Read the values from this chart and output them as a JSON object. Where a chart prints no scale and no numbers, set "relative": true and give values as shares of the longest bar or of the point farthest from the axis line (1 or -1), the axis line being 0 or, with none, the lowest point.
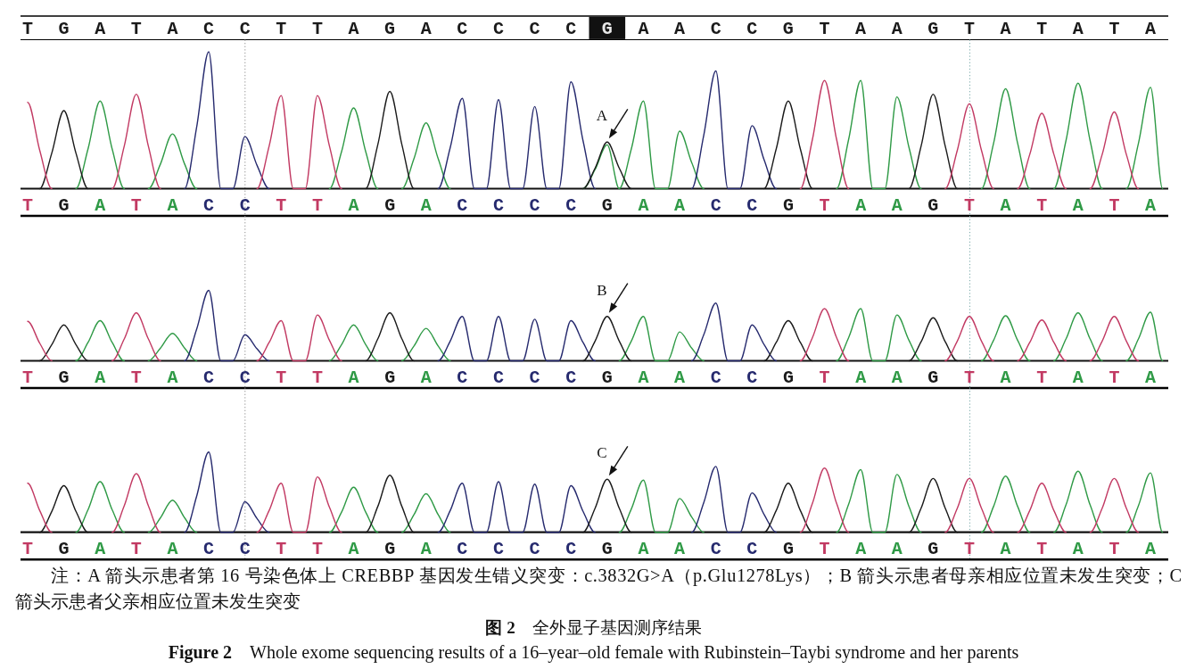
{
  "chart_data": [
    {
      "type": "other",
      "categories": [
        "T",
        "G",
        "A",
        "T",
        "A",
        "C",
        "C",
        "T",
        "T",
        "A",
        "G",
        "A",
        "C",
        "C",
        "C",
        "C",
        "G",
        "A",
        "A",
        "C",
        "C",
        "G",
        "T",
        "A",
        "A",
        "G",
        "T",
        "A",
        "T",
        "A",
        "T",
        "A"
      ],
      "colors": [
        null,
        null,
        null,
        null,
        null,
        null,
        null,
        null,
        null,
        null,
        null,
        null,
        null,
        null,
        null,
        null,
        "#111111",
        null,
        null,
        null,
        null,
        null,
        null,
        null,
        null,
        null,
        null,
        null,
        null,
        null,
        null,
        null
      ]
    },
    {
      "type": "line",
      "relative": true,
      "categories": [
        "T",
        null,
        null,
        "G",
        null,
        null,
        "A",
        null,
        null,
        "T",
        null,
        null,
        "A",
        null,
        null,
        "C",
        null,
        null,
        "C",
        null,
        null,
        "T",
        null,
        null,
        "T",
        null,
        null,
        "A",
        null,
        null,
        "G",
        null,
        null,
        "A",
        null,
        null,
        "C",
        null,
        null,
        "C",
        null,
        null,
        "C",
        null,
        null,
        "C",
        null,
        null,
        "G",
        null,
        null,
        "A",
        null,
        null,
        "A",
        null,
        null,
        "C",
        null,
        null,
        "C",
        null,
        null,
        "G",
        null,
        null,
        "T",
        null,
        null,
        "A",
        null,
        null,
        "A",
        null,
        null,
        "G",
        null,
        null,
        "T",
        null,
        null,
        "A",
        null,
        null,
        "T",
        null,
        null,
        "A",
        null,
        null,
        "T",
        null,
        null,
        "A",
        null
      ],
      "series": [
        {
          "color": "#2f9a46",
          "values": [
            null,
            null,
            null,
            null,
            0,
            0.29,
            0.64,
            0.29,
            0,
            null,
            0,
            0.18,
            0.4,
            0.18,
            0,
            null,
            null,
            null,
            null,
            null,
            null,
            null,
            null,
            null,
            null,
            0,
            0.27,
            0.59,
            0.27,
            0,
            null,
            0,
            0.22,
            0.48,
            0.22,
            0,
            null,
            null,
            null,
            null,
            null,
            null,
            null,
            null,
            null,
            null,
            0,
            0.14,
            0.32,
            0,
            0.29,
            0.64,
            0,
            0,
            0.42,
            0.19,
            0,
            null,
            null,
            null,
            null,
            null,
            null,
            null,
            null,
            null,
            null,
            0,
            0.36,
            0.79,
            0,
            0,
            0.67,
            0.3,
            0,
            null,
            null,
            null,
            null,
            0,
            0.33,
            0.73,
            0.33,
            0,
            null,
            0,
            0.35,
            0.77,
            0.35,
            0,
            null,
            0,
            0.33,
            0.74,
            0
          ]
        },
        {
          "color": "#262a6e",
          "values": [
            null,
            null,
            null,
            null,
            null,
            null,
            null,
            null,
            null,
            null,
            null,
            null,
            null,
            0,
            0.45,
            1,
            0,
            0,
            0.38,
            0.17,
            0,
            null,
            null,
            null,
            null,
            null,
            null,
            null,
            null,
            null,
            null,
            null,
            null,
            null,
            0,
            0.3,
            0.66,
            0,
            0,
            0.65,
            0,
            0,
            0.6,
            0,
            0,
            0.78,
            0.35,
            0,
            null,
            null,
            null,
            null,
            null,
            null,
            null,
            0,
            0.39,
            0.86,
            0,
            0,
            0.46,
            0.21,
            0,
            null,
            null,
            null,
            null,
            null,
            null,
            null,
            null,
            null,
            null,
            null,
            null,
            null,
            null,
            null,
            null,
            null,
            null,
            null,
            null,
            null,
            null,
            null,
            null,
            null,
            null,
            null,
            null,
            null,
            null,
            null,
            null
          ]
        },
        {
          "color": "#1a1a1a",
          "values": [
            null,
            0,
            0.26,
            0.57,
            0.26,
            0,
            null,
            null,
            null,
            null,
            null,
            null,
            null,
            null,
            null,
            null,
            null,
            null,
            null,
            null,
            null,
            null,
            null,
            null,
            null,
            null,
            null,
            null,
            0,
            0.32,
            0.71,
            0.32,
            0,
            null,
            null,
            null,
            null,
            null,
            null,
            null,
            null,
            null,
            null,
            null,
            null,
            null,
            0,
            0.15,
            0.34,
            0.15,
            0,
            null,
            null,
            null,
            null,
            null,
            null,
            null,
            null,
            null,
            null,
            0,
            0.29,
            0.64,
            0.29,
            0,
            null,
            null,
            null,
            null,
            null,
            null,
            null,
            0,
            0.31,
            0.69,
            0.31,
            0,
            null,
            null,
            null,
            null,
            null,
            null,
            null,
            null,
            null,
            null,
            null,
            null,
            null,
            null,
            null,
            null,
            null
          ]
        },
        {
          "color": "#c23a63",
          "values": [
            0.63,
            0.28,
            0,
            null,
            null,
            null,
            null,
            0,
            0.31,
            0.69,
            0.31,
            0,
            null,
            null,
            null,
            null,
            null,
            null,
            null,
            0,
            0.31,
            0.68,
            0,
            0,
            0.68,
            0.31,
            0,
            null,
            null,
            null,
            null,
            null,
            null,
            null,
            null,
            null,
            null,
            null,
            null,
            null,
            null,
            null,
            null,
            null,
            null,
            null,
            null,
            null,
            null,
            null,
            null,
            null,
            null,
            null,
            null,
            null,
            null,
            null,
            null,
            null,
            null,
            null,
            null,
            null,
            0,
            0.36,
            0.79,
            0.36,
            0,
            null,
            null,
            null,
            null,
            null,
            null,
            null,
            0,
            0.28,
            0.62,
            0.28,
            0,
            null,
            0,
            0.25,
            0.55,
            0.25,
            0,
            null,
            0,
            0.25,
            0.56,
            0.25,
            0,
            null,
            null
          ]
        }
      ],
      "annotations": [
        "A"
      ]
    },
    {
      "type": "line",
      "relative": true,
      "categories": [
        "T",
        null,
        null,
        "G",
        null,
        null,
        "A",
        null,
        null,
        "T",
        null,
        null,
        "A",
        null,
        null,
        "C",
        null,
        null,
        "C",
        null,
        null,
        "T",
        null,
        null,
        "T",
        null,
        null,
        "A",
        null,
        null,
        "G",
        null,
        null,
        "A",
        null,
        null,
        "C",
        null,
        null,
        "C",
        null,
        null,
        "C",
        null,
        null,
        "C",
        null,
        null,
        "G",
        null,
        null,
        "A",
        null,
        null,
        "A",
        null,
        null,
        "C",
        null,
        null,
        "C",
        null,
        null,
        "G",
        null,
        null,
        "T",
        null,
        null,
        "A",
        null,
        null,
        "A",
        null,
        null,
        "G",
        null,
        null,
        "T",
        null,
        null,
        "A",
        null,
        null,
        "T",
        null,
        null,
        "A",
        null,
        null,
        "T",
        null,
        null,
        "A",
        null
      ],
      "series": [
        {
          "color": "#2f9a46",
          "values": [
            null,
            null,
            null,
            null,
            0,
            0.26,
            0.57,
            0.26,
            0,
            null,
            0,
            0.18,
            0.39,
            0.18,
            0,
            null,
            null,
            null,
            null,
            null,
            null,
            null,
            null,
            null,
            null,
            0,
            0.23,
            0.51,
            0.23,
            0,
            null,
            0,
            0.21,
            0.46,
            0.21,
            0,
            null,
            null,
            null,
            null,
            null,
            null,
            null,
            null,
            null,
            null,
            null,
            null,
            null,
            0,
            0.28,
            0.63,
            0,
            0,
            0.41,
            0.18,
            0,
            null,
            null,
            null,
            null,
            null,
            null,
            null,
            null,
            null,
            null,
            0,
            0.33,
            0.74,
            0,
            0,
            0.65,
            0.29,
            0,
            null,
            null,
            null,
            null,
            0,
            0.29,
            0.64,
            0.29,
            0,
            null,
            0,
            0.31,
            0.68,
            0.31,
            0,
            null,
            0,
            0.31,
            0.69,
            0
          ]
        },
        {
          "color": "#262a6e",
          "values": [
            null,
            null,
            null,
            null,
            null,
            null,
            null,
            null,
            null,
            null,
            null,
            null,
            null,
            0,
            0.45,
            1,
            0,
            0,
            0.37,
            0.17,
            0,
            null,
            null,
            null,
            null,
            null,
            null,
            null,
            null,
            null,
            null,
            null,
            null,
            null,
            0,
            0.28,
            0.63,
            0,
            0,
            0.63,
            0,
            0,
            0.59,
            0,
            0,
            0.57,
            0.26,
            0,
            null,
            null,
            null,
            null,
            null,
            null,
            null,
            0,
            0.37,
            0.82,
            0,
            0,
            0.51,
            0.23,
            0,
            null,
            null,
            null,
            null,
            null,
            null,
            null,
            null,
            null,
            null,
            null,
            null,
            null,
            null,
            null,
            null,
            null,
            null,
            null,
            null,
            null,
            null,
            null,
            null,
            null,
            null,
            null,
            null,
            null,
            null,
            null,
            null
          ]
        },
        {
          "color": "#1a1a1a",
          "values": [
            null,
            0,
            0.23,
            0.51,
            0.23,
            0,
            null,
            null,
            null,
            null,
            null,
            null,
            null,
            null,
            null,
            null,
            null,
            null,
            null,
            null,
            null,
            null,
            null,
            null,
            null,
            null,
            null,
            null,
            0,
            0.31,
            0.68,
            0.31,
            0,
            null,
            null,
            null,
            null,
            null,
            null,
            null,
            null,
            null,
            null,
            null,
            null,
            null,
            0,
            0.28,
            0.63,
            0.28,
            0,
            null,
            null,
            null,
            null,
            null,
            null,
            null,
            null,
            null,
            null,
            0,
            0.26,
            0.57,
            0.26,
            0,
            null,
            null,
            null,
            null,
            null,
            null,
            null,
            0,
            0.27,
            0.61,
            0.27,
            0,
            null,
            null,
            null,
            null,
            null,
            null,
            null,
            null,
            null,
            null,
            null,
            null,
            null,
            null,
            null,
            null,
            null
          ]
        },
        {
          "color": "#c23a63",
          "values": [
            0.56,
            0.25,
            0,
            null,
            null,
            null,
            null,
            0,
            0.31,
            0.68,
            0.31,
            0,
            null,
            null,
            null,
            null,
            null,
            null,
            null,
            0,
            0.26,
            0.57,
            0,
            0,
            0.65,
            0.29,
            0,
            null,
            null,
            null,
            null,
            null,
            null,
            null,
            null,
            null,
            null,
            null,
            null,
            null,
            null,
            null,
            null,
            null,
            null,
            null,
            null,
            null,
            null,
            null,
            null,
            null,
            null,
            null,
            null,
            null,
            null,
            null,
            null,
            null,
            null,
            null,
            null,
            null,
            0,
            0.33,
            0.74,
            0.33,
            0,
            null,
            null,
            null,
            null,
            null,
            null,
            null,
            0,
            0.28,
            0.63,
            0.28,
            0,
            null,
            0,
            0.26,
            0.58,
            0.26,
            0,
            null,
            0,
            0.28,
            0.63,
            0.28,
            0,
            null,
            null
          ]
        }
      ],
      "annotations": [
        "B"
      ]
    },
    {
      "type": "line",
      "relative": true,
      "categories": [
        "T",
        null,
        null,
        "G",
        null,
        null,
        "A",
        null,
        null,
        "T",
        null,
        null,
        "A",
        null,
        null,
        "C",
        null,
        null,
        "C",
        null,
        null,
        "T",
        null,
        null,
        "T",
        null,
        null,
        "A",
        null,
        null,
        "G",
        null,
        null,
        "A",
        null,
        null,
        "C",
        null,
        null,
        "C",
        null,
        null,
        "C",
        null,
        null,
        "C",
        null,
        null,
        "G",
        null,
        null,
        "A",
        null,
        null,
        "A",
        null,
        null,
        "C",
        null,
        null,
        "C",
        null,
        null,
        "G",
        null,
        null,
        "T",
        null,
        null,
        "A",
        null,
        null,
        "A",
        null,
        null,
        "G",
        null,
        null,
        "T",
        null,
        null,
        "A",
        null,
        null,
        "T",
        null,
        null,
        "A",
        null,
        null,
        "T",
        null,
        null,
        "A",
        null
      ],
      "series": [
        {
          "color": "#2f9a46",
          "values": [
            null,
            null,
            null,
            null,
            0,
            0.28,
            0.63,
            0.28,
            0,
            null,
            0,
            0.18,
            0.4,
            0.18,
            0,
            null,
            null,
            null,
            null,
            null,
            null,
            null,
            null,
            null,
            null,
            0,
            0.25,
            0.56,
            0.25,
            0,
            null,
            0,
            0.22,
            0.48,
            0.22,
            0,
            null,
            null,
            null,
            null,
            null,
            null,
            null,
            null,
            null,
            null,
            null,
            null,
            null,
            0,
            0.29,
            0.65,
            0,
            0,
            0.42,
            0.19,
            0,
            null,
            null,
            null,
            null,
            null,
            null,
            null,
            null,
            null,
            null,
            0,
            0.35,
            0.78,
            0,
            0,
            0.72,
            0.32,
            0,
            null,
            null,
            null,
            null,
            0,
            0.32,
            0.7,
            0.32,
            0,
            null,
            0,
            0.34,
            0.76,
            0.34,
            0,
            null,
            0,
            0.33,
            0.74,
            0
          ]
        },
        {
          "color": "#262a6e",
          "values": [
            null,
            null,
            null,
            null,
            null,
            null,
            null,
            null,
            null,
            null,
            null,
            null,
            null,
            0,
            0.45,
            1,
            0,
            0,
            0.38,
            0.17,
            0,
            null,
            null,
            null,
            null,
            null,
            null,
            null,
            null,
            null,
            null,
            null,
            null,
            null,
            0,
            0.27,
            0.61,
            0,
            0,
            0.63,
            0,
            0,
            0.6,
            0,
            0,
            0.58,
            0.26,
            0,
            null,
            null,
            null,
            null,
            null,
            null,
            null,
            0,
            0.37,
            0.82,
            0,
            0,
            0.49,
            0.22,
            0,
            null,
            null,
            null,
            null,
            null,
            null,
            null,
            null,
            null,
            null,
            null,
            null,
            null,
            null,
            null,
            null,
            null,
            null,
            null,
            null,
            null,
            null,
            null,
            null,
            null,
            null,
            null,
            null,
            null,
            null,
            null,
            null
          ]
        },
        {
          "color": "#1a1a1a",
          "values": [
            null,
            0,
            0.26,
            0.58,
            0.26,
            0,
            null,
            null,
            null,
            null,
            null,
            null,
            null,
            null,
            null,
            null,
            null,
            null,
            null,
            null,
            null,
            null,
            null,
            null,
            null,
            null,
            null,
            null,
            0,
            0.32,
            0.71,
            0.32,
            0,
            null,
            null,
            null,
            null,
            null,
            null,
            null,
            null,
            null,
            null,
            null,
            null,
            null,
            0,
            0.3,
            0.66,
            0.3,
            0,
            null,
            null,
            null,
            null,
            null,
            null,
            null,
            null,
            null,
            null,
            0,
            0.27,
            0.61,
            0.27,
            0,
            null,
            null,
            null,
            null,
            null,
            null,
            null,
            0,
            0.3,
            0.67,
            0.3,
            0,
            null,
            null,
            null,
            null,
            null,
            null,
            null,
            null,
            null,
            null,
            null,
            null,
            null,
            null,
            null,
            null,
            null
          ]
        },
        {
          "color": "#c23a63",
          "values": [
            0.61,
            0.27,
            0,
            null,
            null,
            null,
            null,
            0,
            0.33,
            0.73,
            0.33,
            0,
            null,
            null,
            null,
            null,
            null,
            null,
            null,
            0,
            0.27,
            0.61,
            0,
            0,
            0.69,
            0.31,
            0,
            null,
            null,
            null,
            null,
            null,
            null,
            null,
            null,
            null,
            null,
            null,
            null,
            null,
            null,
            null,
            null,
            null,
            null,
            null,
            null,
            null,
            null,
            null,
            null,
            null,
            null,
            null,
            null,
            null,
            null,
            null,
            null,
            null,
            null,
            null,
            null,
            null,
            0,
            0.36,
            0.8,
            0.36,
            0,
            null,
            null,
            null,
            null,
            null,
            null,
            null,
            0,
            0.3,
            0.67,
            0.3,
            0,
            null,
            0,
            0.27,
            0.61,
            0.27,
            0,
            null,
            0,
            0.3,
            0.67,
            0.3,
            0,
            null,
            null
          ]
        }
      ],
      "annotations": [
        "C",
        "注：A 箭头示患者第 16 号染色体上 CREBBP 基因发生错义突变：c.3832G>A（p.Glu1278Lys）；B 箭头示患者母亲相应位置未发生突变；C 箭头示患者父亲相应位置未发生突变",
        "**图 2**　全外显子基因测序结果",
        "**Figure 2** Whole exome sequencing results of a 16–year–old female with Rubinstein–Taybi syndrome and her parents"
      ]
    }
  ]
}
